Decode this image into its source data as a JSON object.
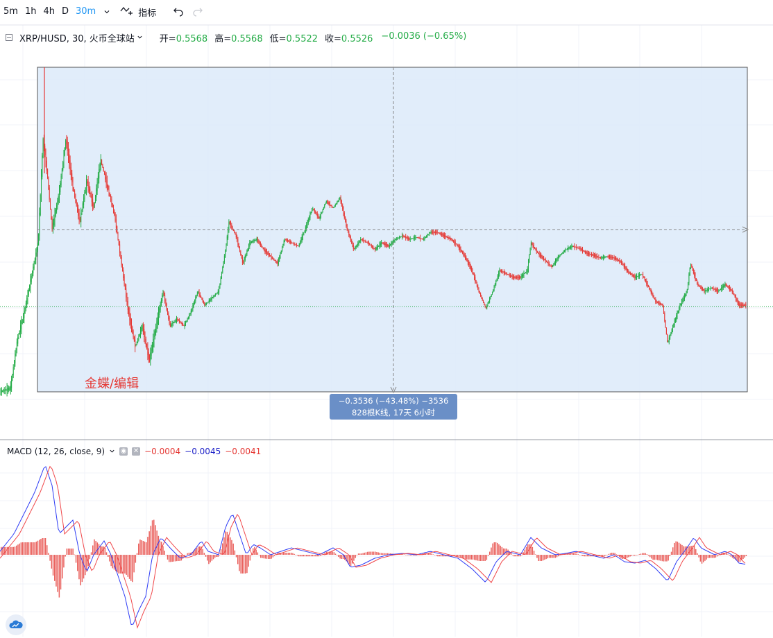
{
  "toolbar": {
    "timeframes": [
      {
        "label": "5m",
        "active": false
      },
      {
        "label": "1h",
        "active": false
      },
      {
        "label": "4h",
        "active": false
      },
      {
        "label": "D",
        "active": false
      },
      {
        "label": "30m",
        "active": true
      }
    ],
    "indicators_label": "指标"
  },
  "legend": {
    "symbol": "XRP/HUSD, 30, 火币全球站",
    "open_label": "开=",
    "open": "0.5568",
    "high_label": "高=",
    "high": "0.5568",
    "low_label": "低=",
    "low": "0.5522",
    "close_label": "收=",
    "close": "0.5526",
    "change": "−0.0036 (−0.65%)"
  },
  "measure": {
    "line1": "−0.3536 (−43.48%) −3536",
    "line2": "828根K线, 17天 6小时"
  },
  "watermark": "金蝶/编辑",
  "macd": {
    "name": "MACD (12, 26, close, 9)",
    "hist": "−0.0004",
    "macd": "−0.0045",
    "signal": "−0.0041"
  },
  "colors": {
    "up": "#22ab45",
    "down": "#e53935",
    "macd_line": "#2f3df5",
    "signal_line": "#f0474a",
    "measure_fill": "#dceaf9",
    "accent": "#2196f3"
  },
  "icons": {
    "indicators": "indicators-icon",
    "undo": "undo-icon",
    "redo": "redo-icon",
    "logo": "cloud-logo-icon"
  }
}
